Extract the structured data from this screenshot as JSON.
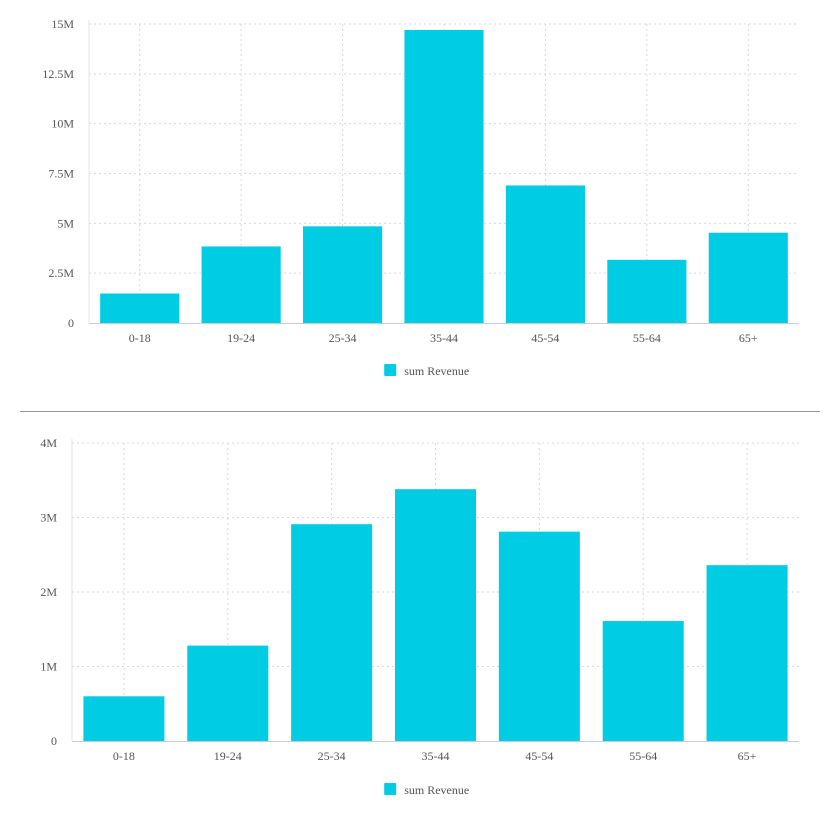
{
  "chart_data": [
    {
      "type": "bar",
      "categories": [
        "0-18",
        "19-24",
        "25-34",
        "35-44",
        "45-54",
        "55-64",
        "65+"
      ],
      "series": [
        {
          "name": "sum Revenue",
          "values": [
            1480000,
            3840000,
            4850000,
            14700000,
            6900000,
            3170000,
            4530000
          ]
        }
      ],
      "ylim": [
        0,
        15000000
      ],
      "yticks": [
        0,
        2500000,
        5000000,
        7500000,
        10000000,
        12500000,
        15000000
      ],
      "ytick_labels": [
        "0",
        "2.5M",
        "5M",
        "7.5M",
        "10M",
        "12.5M",
        "15M"
      ],
      "grid": true,
      "legend_position": "bottom",
      "color": "#00cce3"
    },
    {
      "type": "bar",
      "categories": [
        "0-18",
        "19-24",
        "25-34",
        "35-44",
        "45-54",
        "55-64",
        "65+"
      ],
      "series": [
        {
          "name": "sum Revenue",
          "values": [
            600000,
            1280000,
            2910000,
            3380000,
            2810000,
            1610000,
            2360000
          ]
        }
      ],
      "ylim": [
        0,
        4000000
      ],
      "yticks": [
        0,
        1000000,
        2000000,
        3000000,
        4000000
      ],
      "ytick_labels": [
        "0",
        "1M",
        "2M",
        "3M",
        "4M"
      ],
      "grid": true,
      "legend_position": "bottom",
      "color": "#00cce3"
    }
  ]
}
